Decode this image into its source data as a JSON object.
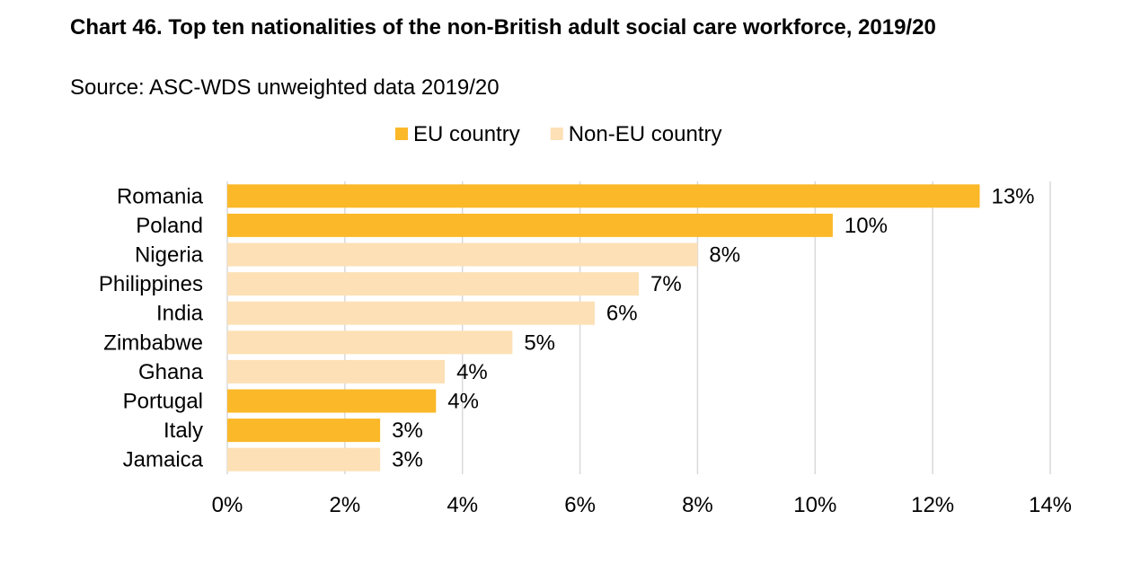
{
  "title": "Chart 46. Top ten nationalities of the non-British adult social care workforce, 2019/20",
  "subtitle": "Source: ASC-WDS unweighted data 2019/20",
  "colors": {
    "eu": "#FBB829",
    "non_eu": "#FDE0B5",
    "grid": "#D9D9D9"
  },
  "chart_data": {
    "type": "bar",
    "orientation": "horizontal",
    "legend_position": "top",
    "grid": true,
    "xlim": [
      0,
      14
    ],
    "x_ticks": [
      0,
      2,
      4,
      6,
      8,
      10,
      12,
      14
    ],
    "x_tick_labels": [
      "0%",
      "2%",
      "4%",
      "6%",
      "8%",
      "10%",
      "12%",
      "14%"
    ],
    "legend": [
      {
        "name": "EU country",
        "key": "eu"
      },
      {
        "name": "Non-EU country",
        "key": "non_eu"
      }
    ],
    "bars": [
      {
        "category": "Romania",
        "value": 12.8,
        "label": "13%",
        "group": "eu"
      },
      {
        "category": "Poland",
        "value": 10.3,
        "label": "10%",
        "group": "eu"
      },
      {
        "category": "Nigeria",
        "value": 8.0,
        "label": "8%",
        "group": "non_eu"
      },
      {
        "category": "Philippines",
        "value": 7.0,
        "label": "7%",
        "group": "non_eu"
      },
      {
        "category": "India",
        "value": 6.25,
        "label": "6%",
        "group": "non_eu"
      },
      {
        "category": "Zimbabwe",
        "value": 4.85,
        "label": "5%",
        "group": "non_eu"
      },
      {
        "category": "Ghana",
        "value": 3.7,
        "label": "4%",
        "group": "non_eu"
      },
      {
        "category": "Portugal",
        "value": 3.55,
        "label": "4%",
        "group": "eu"
      },
      {
        "category": "Italy",
        "value": 2.6,
        "label": "3%",
        "group": "eu"
      },
      {
        "category": "Jamaica",
        "value": 2.6,
        "label": "3%",
        "group": "non_eu"
      }
    ]
  }
}
